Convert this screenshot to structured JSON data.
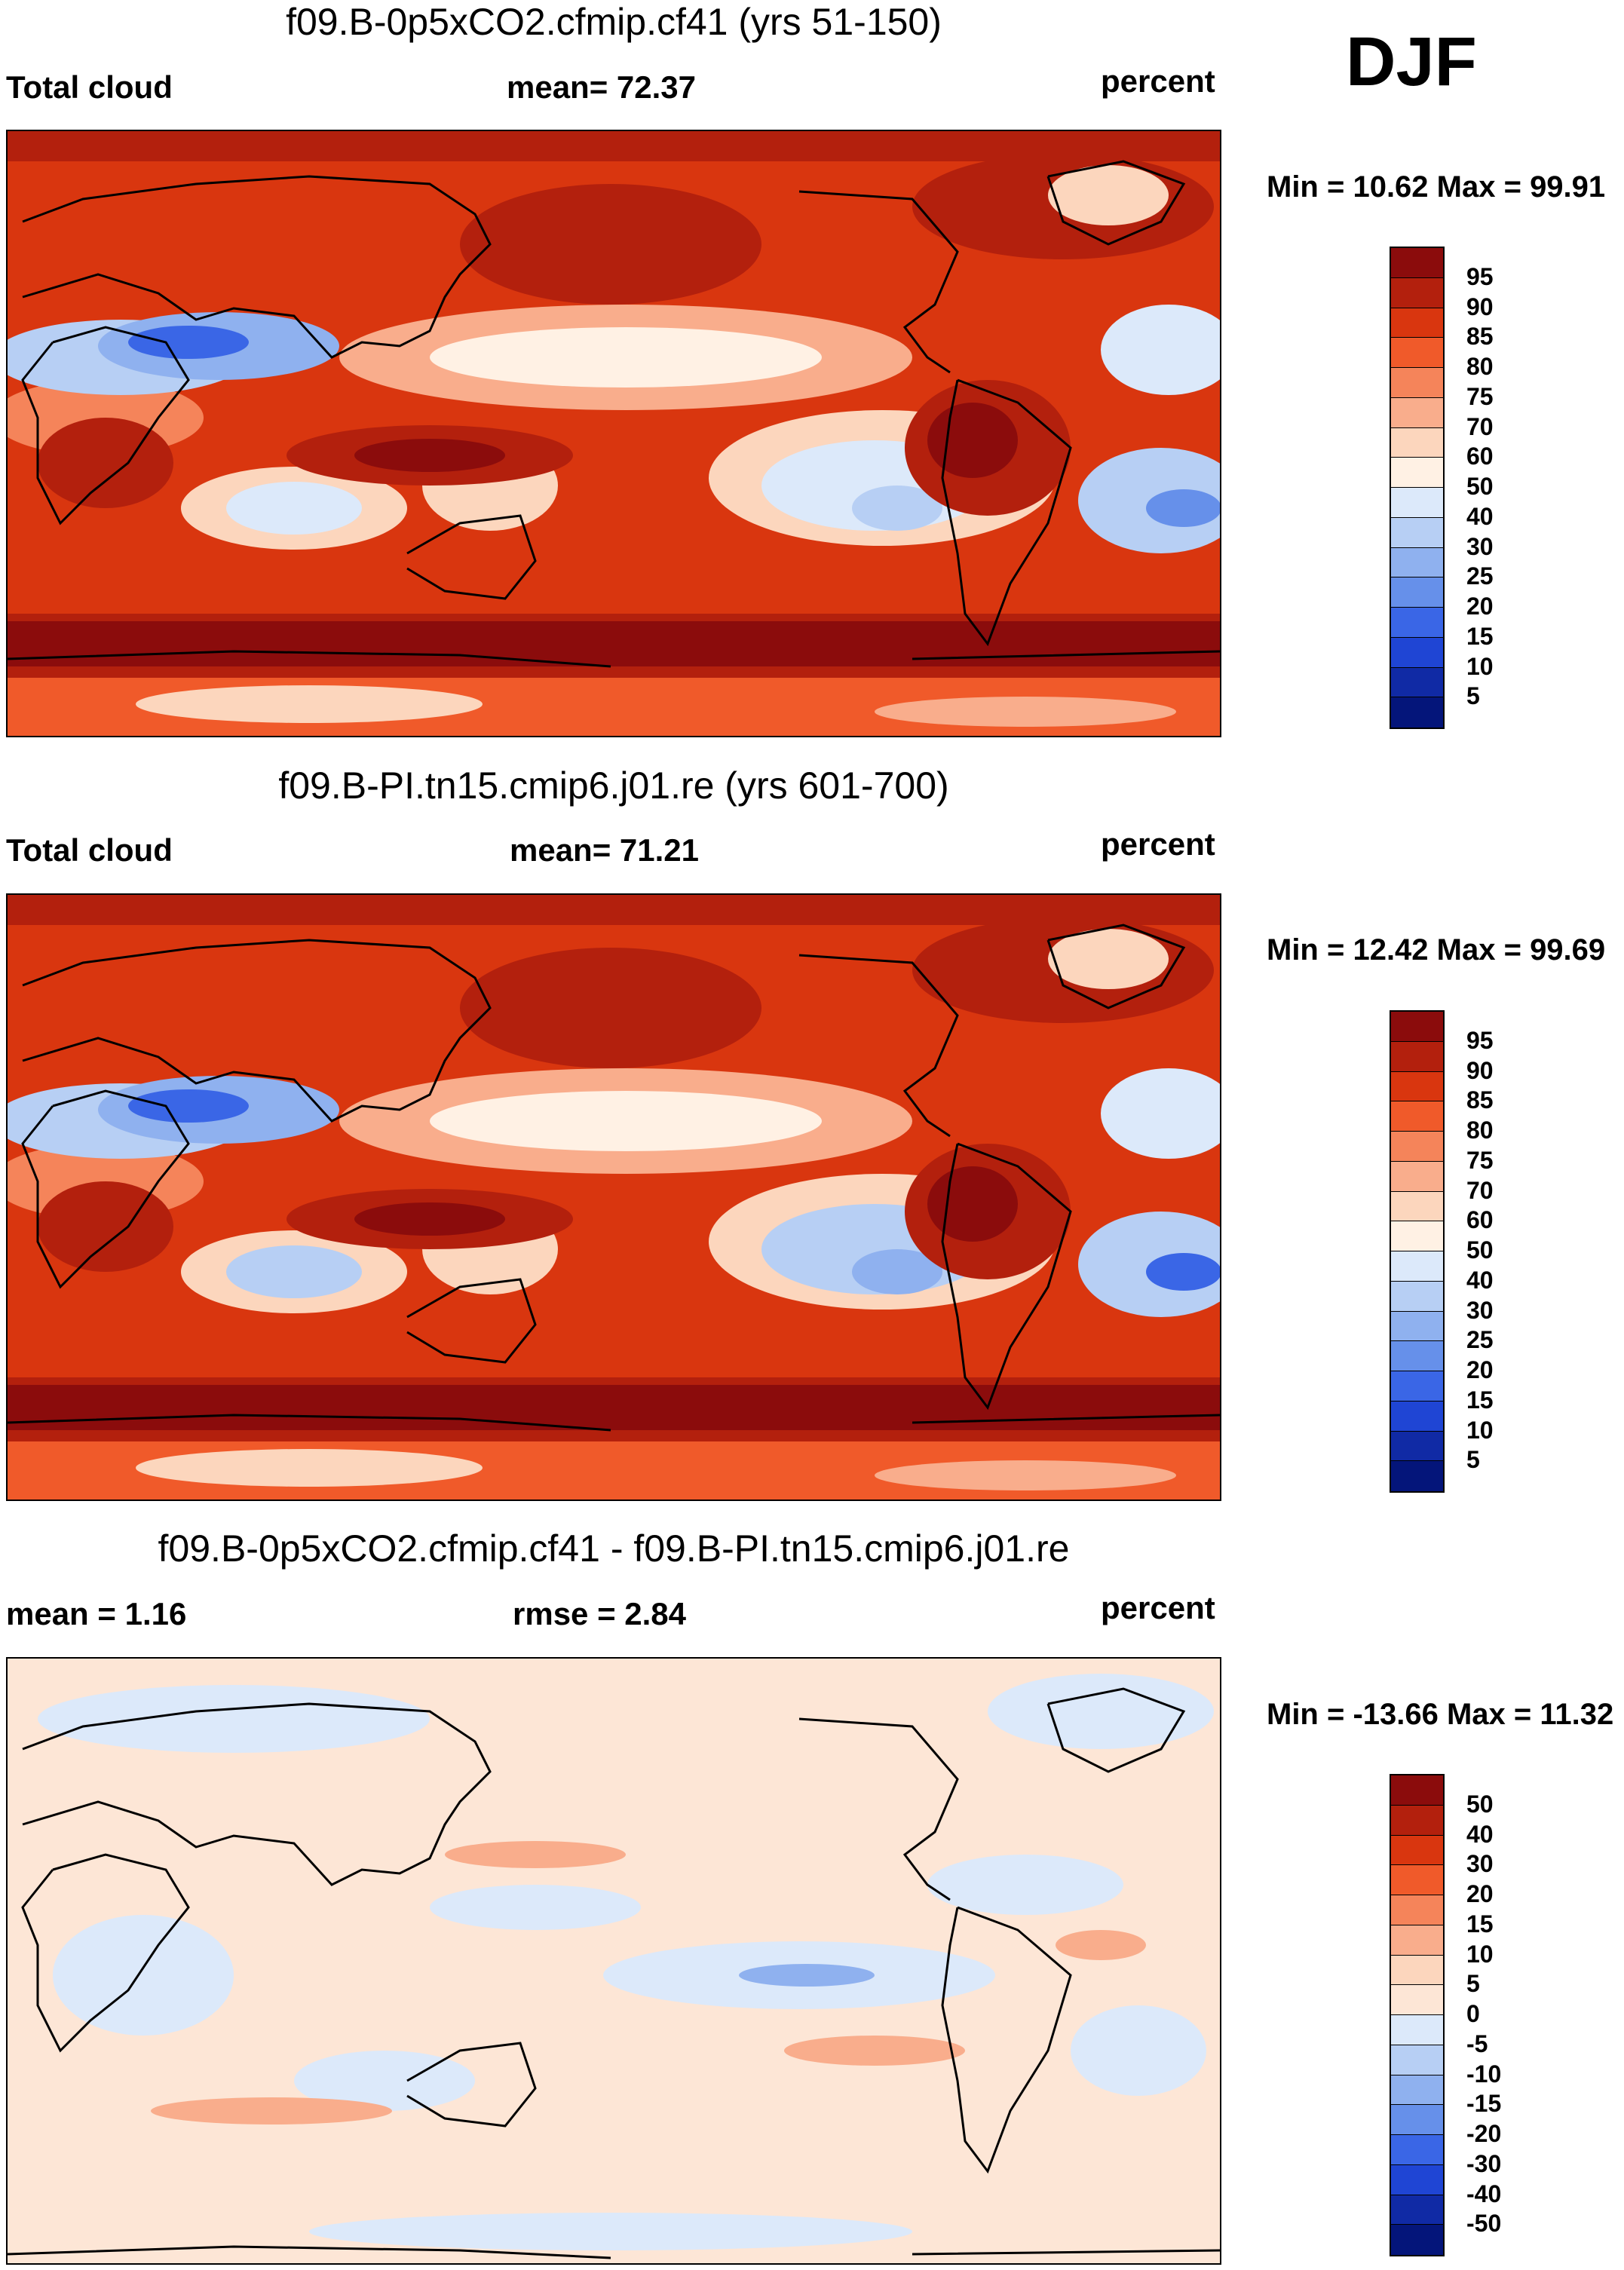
{
  "season": "DJF",
  "chart_data": [
    {
      "type": "heatmap",
      "subtype": "global-map",
      "title": "f09.B-0p5xCO2.cfmip.cf41 (yrs 51-150)",
      "left_label": "Total cloud",
      "center_label": "mean=  72.37",
      "right_label": "percent",
      "min_max": "Min =  10.62 Max =  99.91",
      "mean": 72.37,
      "min": 10.62,
      "max": 99.91,
      "colorbar": {
        "ticks": [
          "95",
          "90",
          "85",
          "80",
          "75",
          "70",
          "60",
          "50",
          "40",
          "30",
          "25",
          "20",
          "15",
          "10",
          "5"
        ],
        "colors": [
          "#8b0c0c",
          "#b3200d",
          "#d9360f",
          "#f05a2a",
          "#f5845a",
          "#f9ad8c",
          "#fcd6bd",
          "#fff1e4",
          "#dce9fa",
          "#b7cff4",
          "#8fb1ef",
          "#6690ea",
          "#3a66e6",
          "#1f45d4",
          "#102aa5",
          "#04157a"
        ]
      }
    },
    {
      "type": "heatmap",
      "subtype": "global-map",
      "title": "f09.B-PI.tn15.cmip6.j01.re (yrs 601-700)",
      "left_label": "Total cloud",
      "center_label": "mean=  71.21",
      "right_label": "percent",
      "min_max": "Min =  12.42 Max =  99.69",
      "mean": 71.21,
      "min": 12.42,
      "max": 99.69,
      "colorbar": {
        "ticks": [
          "95",
          "90",
          "85",
          "80",
          "75",
          "70",
          "60",
          "50",
          "40",
          "30",
          "25",
          "20",
          "15",
          "10",
          "5"
        ],
        "colors": [
          "#8b0c0c",
          "#b3200d",
          "#d9360f",
          "#f05a2a",
          "#f5845a",
          "#f9ad8c",
          "#fcd6bd",
          "#fff1e4",
          "#dce9fa",
          "#b7cff4",
          "#8fb1ef",
          "#6690ea",
          "#3a66e6",
          "#1f45d4",
          "#102aa5",
          "#04157a"
        ]
      }
    },
    {
      "type": "heatmap",
      "subtype": "global-map-difference",
      "title": "f09.B-0p5xCO2.cfmip.cf41 - f09.B-PI.tn15.cmip6.j01.re",
      "left_label": "mean =    1.16",
      "center_label": "rmse =    2.84",
      "right_label": "percent",
      "min_max": "Min = -13.66 Max =  11.32",
      "mean": 1.16,
      "rmse": 2.84,
      "min": -13.66,
      "max": 11.32,
      "colorbar": {
        "ticks": [
          "50",
          "40",
          "30",
          "20",
          "15",
          "10",
          "5",
          "0",
          "-5",
          "-10",
          "-15",
          "-20",
          "-30",
          "-40",
          "-50"
        ],
        "colors": [
          "#8b0c0c",
          "#b3200d",
          "#d9360f",
          "#f05a2a",
          "#f5845a",
          "#f9ad8c",
          "#fcd6bd",
          "#fde6d6",
          "#dce9fa",
          "#b7cff4",
          "#8fb1ef",
          "#6690ea",
          "#3a66e6",
          "#1f45d4",
          "#102aa5",
          "#04157a"
        ]
      }
    }
  ]
}
